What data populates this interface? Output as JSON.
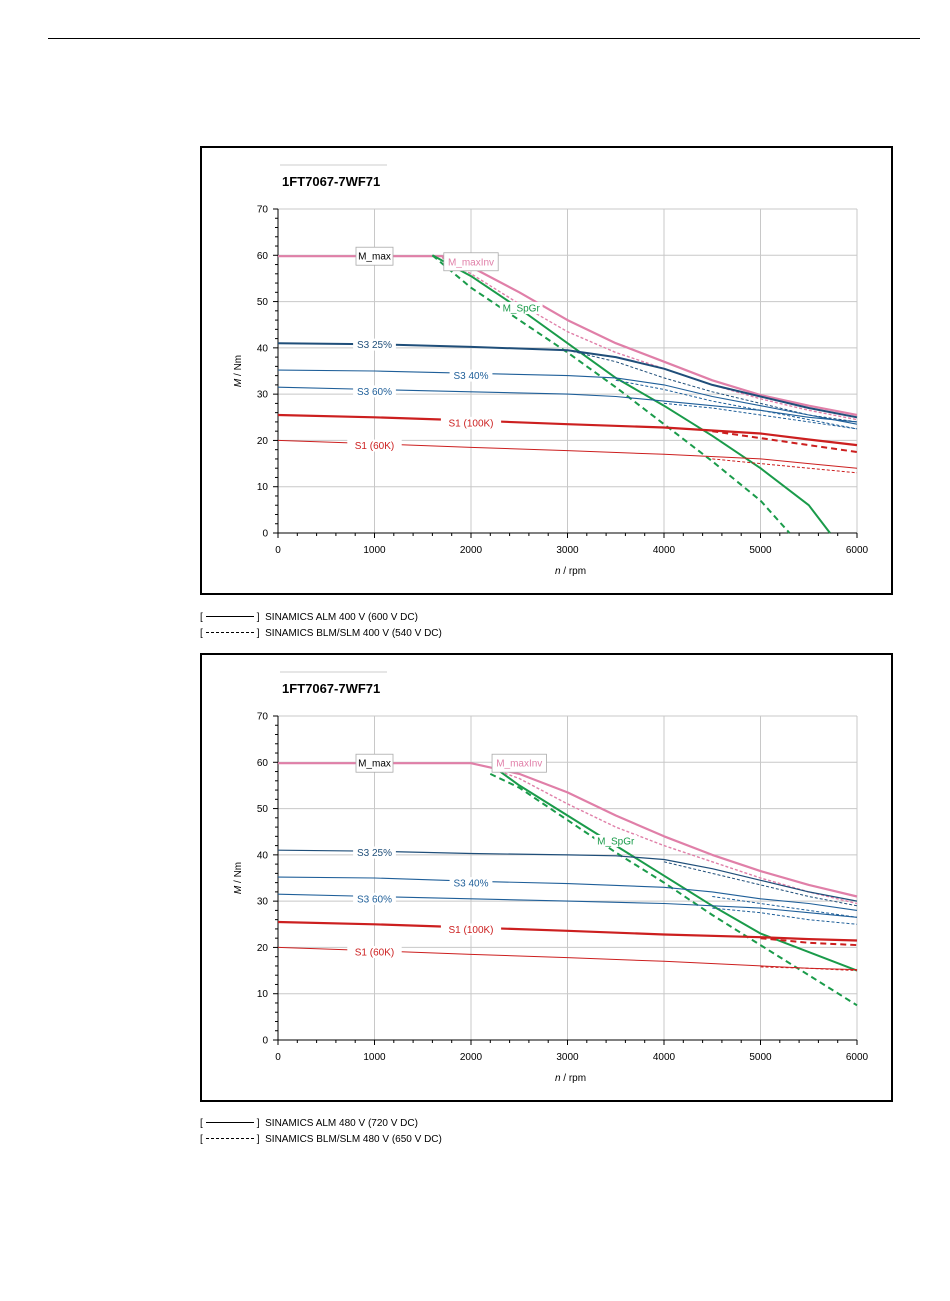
{
  "chart_data": [
    {
      "type": "line",
      "title": "1FT7067-7WF71",
      "ylabel_var": "M",
      "ylabel_unit": " / Nm",
      "xlabel_var": "n",
      "xlabel_unit": " / rpm",
      "xlim": [
        0,
        6000
      ],
      "ylim": [
        0,
        70
      ],
      "xticks": [
        0,
        1000,
        2000,
        3000,
        4000,
        5000,
        6000
      ],
      "yticks": [
        0,
        10,
        20,
        30,
        40,
        50,
        60,
        70
      ],
      "grid": true,
      "series": [
        {
          "name": "M_max",
          "color": "#e07fa8",
          "width": 2.2,
          "dash": false,
          "x": [
            0,
            1700,
            2000,
            2500,
            3000,
            3500,
            4000,
            4500,
            5000,
            5500,
            6000
          ],
          "y": [
            59.8,
            59.8,
            57.5,
            52,
            46,
            41,
            37,
            33,
            29.8,
            27.5,
            25.5
          ]
        },
        {
          "name": "M_maxInv",
          "color": "#e07fa8",
          "width": 1.4,
          "dash": true,
          "x": [
            1700,
            2000,
            2500,
            3000,
            3500,
            4000,
            4500,
            5000,
            5500,
            6000
          ],
          "y": [
            59.5,
            56,
            49.5,
            43.5,
            39,
            35.5,
            32,
            29,
            26.5,
            24.5
          ]
        },
        {
          "name": "M_SpGr",
          "color": "#1a9b4a",
          "width": 2,
          "dash": false,
          "x": [
            1600,
            2000,
            2500,
            3000,
            3500,
            4000,
            4500,
            5000,
            5500,
            5720
          ],
          "y": [
            60,
            55.5,
            48.5,
            41,
            33.5,
            27.5,
            21,
            14,
            6,
            0
          ]
        },
        {
          "name": "M_SpGr",
          "color": "#1a9b4a",
          "width": 2,
          "dash": true,
          "x": [
            1600,
            2000,
            2500,
            3000,
            3500,
            4000,
            4500,
            5000,
            5300
          ],
          "y": [
            60,
            53,
            46,
            39,
            31.5,
            23.5,
            15.5,
            7,
            0
          ]
        },
        {
          "name": "S3 25%",
          "color": "#1f4e79",
          "width": 2,
          "dash": false,
          "x": [
            0,
            1000,
            2000,
            3000,
            3500,
            4000,
            4500,
            5000,
            5500,
            6000
          ],
          "y": [
            41,
            40.8,
            40.2,
            39.5,
            38,
            35.5,
            32,
            29.5,
            27,
            25
          ]
        },
        {
          "name": "S3 25%",
          "color": "#1f4e79",
          "width": 1,
          "dash": true,
          "x": [
            3000,
            3500,
            4000,
            4500,
            5000,
            5500,
            6000
          ],
          "y": [
            39.5,
            37,
            33.5,
            30.5,
            28,
            25.5,
            24
          ]
        },
        {
          "name": "S3 40%",
          "color": "#1f5f99",
          "width": 1.1,
          "dash": false,
          "x": [
            0,
            1000,
            2000,
            3000,
            3500,
            4000,
            4500,
            5000,
            5500,
            6000
          ],
          "y": [
            35.2,
            35,
            34.5,
            34,
            33.5,
            32,
            29.5,
            27.5,
            25.5,
            23.5
          ]
        },
        {
          "name": "S3 40%",
          "color": "#1f5f99",
          "width": 1,
          "dash": true,
          "x": [
            3500,
            4000,
            4500,
            5000,
            5500,
            6000
          ],
          "y": [
            33,
            31,
            28.5,
            26.5,
            24.5,
            22.5
          ]
        },
        {
          "name": "S3 60%",
          "color": "#1f5f99",
          "width": 1.1,
          "dash": false,
          "x": [
            0,
            1000,
            2000,
            3000,
            3500,
            4000,
            4500,
            5000,
            5500,
            6000
          ],
          "y": [
            31.5,
            31,
            30.5,
            30,
            29.5,
            28.5,
            27.5,
            26.5,
            25,
            24
          ]
        },
        {
          "name": "S3 60%",
          "color": "#1f5f99",
          "width": 1,
          "dash": true,
          "x": [
            4000,
            4500,
            5000,
            5500,
            6000
          ],
          "y": [
            28,
            27,
            25.5,
            24,
            22.5
          ]
        },
        {
          "name": "S1 (100K)",
          "color": "#cc1f1f",
          "width": 2.2,
          "dash": false,
          "x": [
            0,
            1000,
            2000,
            3000,
            4000,
            5000,
            5500,
            6000
          ],
          "y": [
            25.5,
            25,
            24.3,
            23.5,
            22.8,
            21.5,
            20.2,
            19
          ]
        },
        {
          "name": "S1 (100K)",
          "color": "#cc1f1f",
          "width": 2,
          "dash": true,
          "x": [
            4500,
            5000,
            5500,
            6000
          ],
          "y": [
            22,
            20.5,
            19,
            17.5
          ]
        },
        {
          "name": "S1 (60K)",
          "color": "#cc1f1f",
          "width": 1,
          "dash": false,
          "x": [
            0,
            1000,
            2000,
            3000,
            4000,
            5000,
            5500,
            6000
          ],
          "y": [
            20,
            19.3,
            18.5,
            17.8,
            17,
            16,
            15,
            14
          ]
        },
        {
          "name": "S1 (60K)",
          "color": "#cc1f1f",
          "width": 1,
          "dash": true,
          "x": [
            4500,
            5000,
            5500,
            6000
          ],
          "y": [
            16,
            15,
            14,
            13
          ]
        }
      ],
      "labels": [
        {
          "text": "M_max",
          "x": 1000,
          "y": 59.8,
          "color": "#000000",
          "box": true
        },
        {
          "text": "M_maxInv",
          "x": 2000,
          "y": 58.6,
          "color": "#e07fa8",
          "box": true
        },
        {
          "text": "M_SpGr",
          "x": 2520,
          "y": 48.6,
          "color": "#1a9b4a",
          "box": false
        },
        {
          "text": "S3 25%",
          "x": 1000,
          "y": 40.7,
          "color": "#1f4e79",
          "box": false
        },
        {
          "text": "S3 40%",
          "x": 2000,
          "y": 34,
          "color": "#1f5f99",
          "box": false
        },
        {
          "text": "S3 60%",
          "x": 1000,
          "y": 30.6,
          "color": "#1f5f99",
          "box": false
        },
        {
          "text": "S1 (100K)",
          "x": 2000,
          "y": 23.8,
          "color": "#cc1f1f",
          "box": false
        },
        {
          "text": "S1 (60K)",
          "x": 1000,
          "y": 18.9,
          "color": "#cc1f1f",
          "box": false
        }
      ]
    },
    {
      "type": "line",
      "title": "1FT7067-7WF71",
      "ylabel_var": "M",
      "ylabel_unit": " / Nm",
      "xlabel_var": "n",
      "xlabel_unit": " / rpm",
      "xlim": [
        0,
        6000
      ],
      "ylim": [
        0,
        70
      ],
      "xticks": [
        0,
        1000,
        2000,
        3000,
        4000,
        5000,
        6000
      ],
      "yticks": [
        0,
        10,
        20,
        30,
        40,
        50,
        60,
        70
      ],
      "grid": true,
      "series": [
        {
          "name": "M_max",
          "color": "#e07fa8",
          "width": 2.2,
          "dash": false,
          "x": [
            0,
            2000,
            2500,
            3000,
            3500,
            4000,
            4500,
            5000,
            5500,
            6000
          ],
          "y": [
            59.8,
            59.8,
            57.5,
            53.5,
            48.5,
            44,
            40,
            36.5,
            33.5,
            31
          ]
        },
        {
          "name": "M_maxInv",
          "color": "#e07fa8",
          "width": 1.4,
          "dash": true,
          "x": [
            2300,
            2500,
            3000,
            3500,
            4000,
            4500,
            5000,
            5500,
            6000
          ],
          "y": [
            58,
            56.5,
            51,
            46,
            42,
            38.5,
            35,
            32,
            29.5
          ]
        },
        {
          "name": "M_SpGr",
          "color": "#1a9b4a",
          "width": 2,
          "dash": false,
          "x": [
            2300,
            2500,
            3000,
            3500,
            4000,
            4500,
            5000,
            5500,
            6000
          ],
          "y": [
            58,
            55,
            48.5,
            42,
            35.5,
            29,
            23,
            19,
            15
          ]
        },
        {
          "name": "M_SpGr",
          "color": "#1a9b4a",
          "width": 2,
          "dash": true,
          "x": [
            2200,
            2500,
            3000,
            3500,
            4000,
            4500,
            5000,
            5500,
            6000
          ],
          "y": [
            57.5,
            54.5,
            47.5,
            40.5,
            34,
            27,
            20.5,
            14,
            7.5
          ]
        },
        {
          "name": "S3 25%",
          "color": "#1f4e79",
          "width": 1.2,
          "dash": false,
          "x": [
            0,
            1000,
            2000,
            3000,
            3500,
            4000,
            4500,
            5000,
            5500,
            6000
          ],
          "y": [
            41,
            40.8,
            40.3,
            40,
            39.8,
            39,
            37,
            34.5,
            32,
            30
          ]
        },
        {
          "name": "S3 25%",
          "color": "#1f4e79",
          "width": 1,
          "dash": true,
          "x": [
            4000,
            4500,
            5000,
            5500,
            6000
          ],
          "y": [
            38.5,
            36,
            33.5,
            31,
            29
          ]
        },
        {
          "name": "S3 40%",
          "color": "#1f5f99",
          "width": 1.1,
          "dash": false,
          "x": [
            0,
            1000,
            2000,
            3000,
            4000,
            4500,
            5000,
            5500,
            6000
          ],
          "y": [
            35.2,
            35,
            34.3,
            33.8,
            33,
            32,
            30.5,
            29.5,
            28
          ]
        },
        {
          "name": "S3 40%",
          "color": "#1f5f99",
          "width": 1,
          "dash": true,
          "x": [
            4500,
            5000,
            5500,
            6000
          ],
          "y": [
            31,
            29.5,
            28,
            26.5
          ]
        },
        {
          "name": "S3 60%",
          "color": "#1f5f99",
          "width": 1.1,
          "dash": false,
          "x": [
            0,
            1000,
            2000,
            3000,
            4000,
            5000,
            5500,
            6000
          ],
          "y": [
            31.5,
            31,
            30.5,
            30,
            29.5,
            28.5,
            27.5,
            26.5
          ]
        },
        {
          "name": "S3 60%",
          "color": "#1f5f99",
          "width": 1,
          "dash": true,
          "x": [
            4500,
            5000,
            5500,
            6000
          ],
          "y": [
            28.5,
            27.5,
            26,
            25
          ]
        },
        {
          "name": "S1 (100K)",
          "color": "#cc1f1f",
          "width": 2.2,
          "dash": false,
          "x": [
            0,
            1000,
            2000,
            3000,
            4000,
            5000,
            5500,
            6000
          ],
          "y": [
            25.5,
            25,
            24.3,
            23.6,
            22.8,
            22.2,
            21.8,
            21.5
          ]
        },
        {
          "name": "S1 (100K)",
          "color": "#cc1f1f",
          "width": 2,
          "dash": true,
          "x": [
            5000,
            5500,
            6000
          ],
          "y": [
            22,
            21,
            20.5
          ]
        },
        {
          "name": "S1 (60K)",
          "color": "#cc1f1f",
          "width": 1,
          "dash": false,
          "x": [
            0,
            1000,
            2000,
            3000,
            4000,
            5000,
            5500,
            6000
          ],
          "y": [
            20,
            19.3,
            18.5,
            17.8,
            17,
            16,
            15.5,
            15.2
          ]
        },
        {
          "name": "S1 (60K)",
          "color": "#cc1f1f",
          "width": 1,
          "dash": true,
          "x": [
            5000,
            5500,
            6000
          ],
          "y": [
            15.8,
            15.5,
            15
          ]
        }
      ],
      "labels": [
        {
          "text": "M_max",
          "x": 1000,
          "y": 59.8,
          "color": "#000000",
          "box": true
        },
        {
          "text": "M_maxInv",
          "x": 2500,
          "y": 59.8,
          "color": "#e07fa8",
          "box": true
        },
        {
          "text": "M_SpGr",
          "x": 3500,
          "y": 43,
          "color": "#1a9b4a",
          "box": false
        },
        {
          "text": "S3 25%",
          "x": 1000,
          "y": 40.5,
          "color": "#1f4e79",
          "box": false
        },
        {
          "text": "S3 40%",
          "x": 2000,
          "y": 33.9,
          "color": "#1f5f99",
          "box": false
        },
        {
          "text": "S3 60%",
          "x": 1000,
          "y": 30.5,
          "color": "#1f5f99",
          "box": false
        },
        {
          "text": "S1 (100K)",
          "x": 2000,
          "y": 23.9,
          "color": "#cc1f1f",
          "box": false
        },
        {
          "text": "S1 (60K)",
          "x": 1000,
          "y": 19,
          "color": "#cc1f1f",
          "box": false
        }
      ]
    }
  ],
  "captions": {
    "chart1_solid": "SINAMICS ALM 400 V (600 V DC)",
    "chart1_dashed": "SINAMICS BLM/SLM 400 V (540 V DC)",
    "chart2_solid": "SINAMICS ALM 480 V (720 V DC)",
    "chart2_dashed": "SINAMICS BLM/SLM 480 V (650 V DC)"
  }
}
